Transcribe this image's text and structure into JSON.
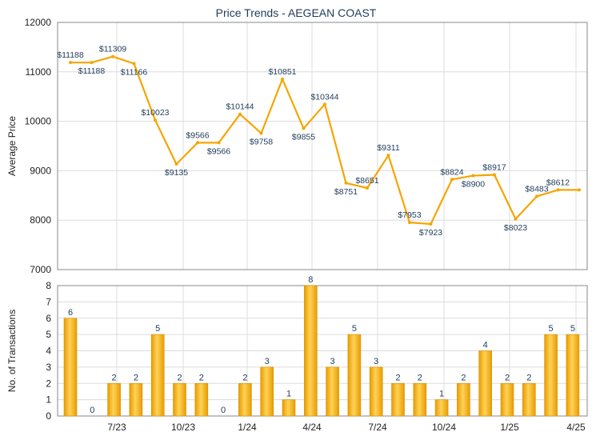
{
  "chart_data": [
    {
      "type": "line",
      "title": "Price Trends - AEGEAN COAST",
      "ylabel": "Average Price",
      "ylim": [
        7000,
        12000
      ],
      "yticks": [
        7000,
        8000,
        9000,
        10000,
        11000,
        12000
      ],
      "grid": true,
      "color": "#f5a500",
      "series": [
        {
          "x": [
            0,
            1,
            2,
            3,
            4,
            5,
            6,
            7,
            8,
            9,
            10,
            11,
            12,
            13,
            14,
            15,
            16,
            17,
            18,
            19,
            20,
            21,
            22,
            23,
            24
          ],
          "values": [
            11188,
            11188,
            11309,
            11166,
            10023,
            9135,
            9566,
            9566,
            10144,
            9758,
            10851,
            9855,
            10344,
            8751,
            8651,
            9311,
            7953,
            7923,
            8824,
            8900,
            8917,
            8023,
            8483,
            8612,
            8612
          ],
          "labels": [
            "$11188",
            "$11188",
            "$11309",
            "$11166",
            "$10023",
            "$9135",
            "$9566",
            "$9566",
            "$10144",
            "$9758",
            "$10851",
            "$9855",
            "$10344",
            "$8751",
            "$8651",
            "$9311",
            "$7953",
            "$7923",
            "$8824",
            "$8900",
            "$8917",
            "$8023",
            "$8483",
            "$8612",
            ""
          ]
        }
      ]
    },
    {
      "type": "bar",
      "ylabel": "No. of Transactions",
      "ylim": [
        0,
        8
      ],
      "yticks": [
        0,
        1,
        2,
        3,
        4,
        5,
        6,
        7,
        8
      ],
      "xtick_labels": [
        "7/23",
        "10/23",
        "1/24",
        "4/24",
        "7/24",
        "10/24",
        "1/25",
        "4/25"
      ],
      "grid": true,
      "color": "#f5b21e",
      "values": [
        6,
        0,
        2,
        2,
        5,
        2,
        2,
        0,
        2,
        3,
        1,
        8,
        3,
        5,
        3,
        2,
        2,
        1,
        2,
        4,
        2,
        2,
        5,
        5
      ]
    }
  ]
}
